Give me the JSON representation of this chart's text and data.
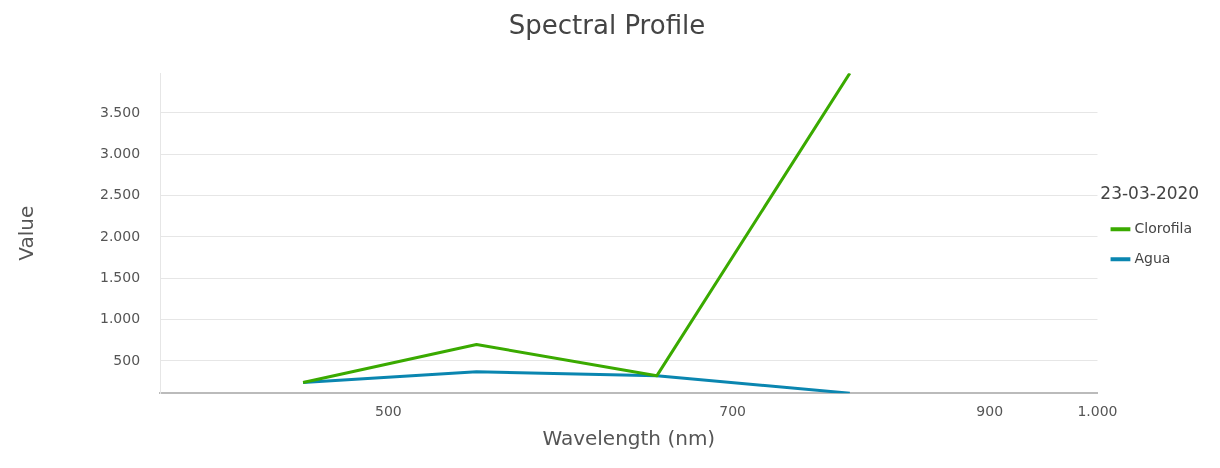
{
  "chart_data": {
    "type": "line",
    "title": "Spectral Profile",
    "xlabel": "Wavelength (nm)",
    "ylabel": "Value",
    "legend_title": "23-03-2020",
    "x": [
      460,
      545,
      650,
      785
    ],
    "series": [
      {
        "name": "Clorofila",
        "color": "#3aaa00",
        "values": [
          240,
          700,
          320,
          3980
        ]
      },
      {
        "name": "Agua",
        "color": "#0a86b0",
        "values": [
          240,
          370,
          320,
          110
        ]
      }
    ],
    "log": "x",
    "xlim": [
      400,
      1000
    ],
    "xticks": [
      500,
      700,
      900,
      {
        "value": 1000,
        "label": "1.000"
      }
    ],
    "ylim": [
      110,
      3980
    ],
    "yticks": [
      {
        "value": 500,
        "label": "500"
      },
      {
        "value": 1000,
        "label": "1.000"
      },
      {
        "value": 1500,
        "label": "1.500"
      },
      {
        "value": 2000,
        "label": "2.000"
      },
      {
        "value": 2500,
        "label": "2.500"
      },
      {
        "value": 3000,
        "label": "3.000"
      },
      {
        "value": 3500,
        "label": "3.500"
      }
    ],
    "grid": "y",
    "legend": "right",
    "marker": "none",
    "line_style": "solid"
  }
}
